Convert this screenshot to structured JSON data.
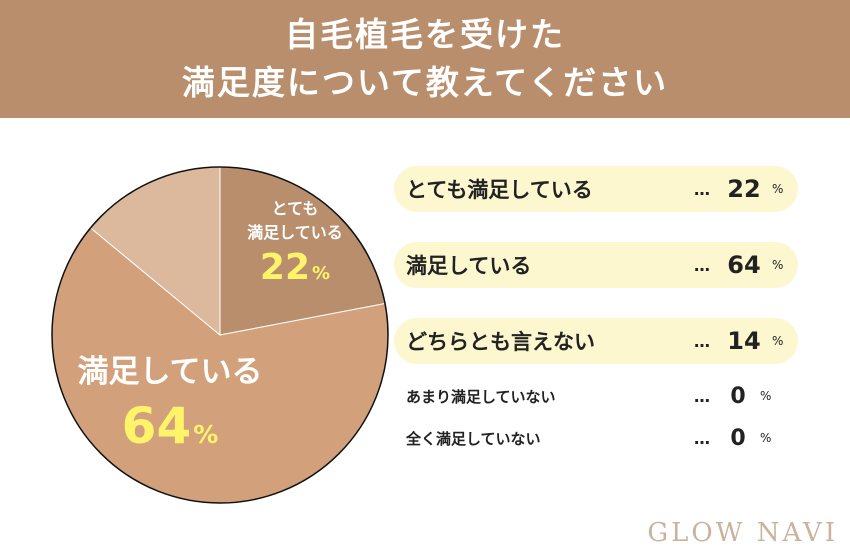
{
  "header": {
    "title_line1": "自毛植毛を受けた",
    "title_line2": "満足度について教えてください"
  },
  "chart_data": {
    "type": "pie",
    "title": "自毛植毛を受けた満足度について教えてください",
    "categories": [
      "とても満足している",
      "満足している",
      "どちらとも言えない",
      "あまり満足していない",
      "全く満足していない"
    ],
    "values": [
      22,
      64,
      14,
      0,
      0
    ],
    "unit": "%",
    "colors": [
      "#b88e6c",
      "#d2a17b",
      "#dcb89c",
      "#e6d0bd",
      "#efe2d6"
    ],
    "slice_labels": [
      {
        "line1": "とても",
        "line2": "満足している",
        "value": "22",
        "unit": "%"
      },
      {
        "line1": "満足している",
        "value": "64",
        "unit": "%"
      }
    ]
  },
  "legend": {
    "dots": "…",
    "unit": "%",
    "rows": [
      {
        "label": "とても満足している",
        "value": "22"
      },
      {
        "label": "満足している",
        "value": "64"
      },
      {
        "label": "どちらとも言えない",
        "value": "14"
      },
      {
        "label": "あまり満足していない",
        "value": "0"
      },
      {
        "label": "全く満足していない",
        "value": "0"
      }
    ]
  },
  "logo": {
    "text": "GLOW NAVI"
  },
  "colors": {
    "header_bg": "#b88e6c",
    "legend_bg": "#fcf7cf",
    "highlight": "#fff36a"
  }
}
